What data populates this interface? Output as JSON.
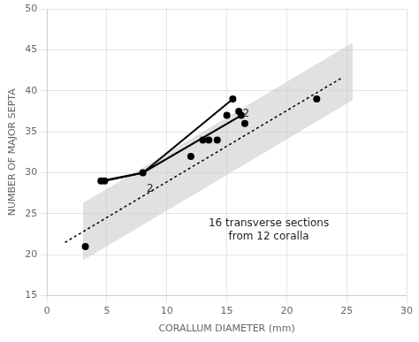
{
  "chart_data": {
    "type": "scatter",
    "xlabel": "CORALLUM DIAMETER (mm)",
    "ylabel": "NUMBER OF MAJOR SEPTA",
    "xlim": [
      0,
      30
    ],
    "ylim": [
      15,
      50
    ],
    "xticks": [
      0,
      5,
      10,
      15,
      20,
      25,
      30
    ],
    "yticks": [
      15,
      20,
      25,
      30,
      35,
      40,
      45,
      50
    ],
    "grid": true,
    "series": [
      {
        "type": "area",
        "color": "#c8c8c8",
        "x": [
          3.0,
          25.5
        ],
        "lower": [
          19.304347826086957,
          38.869565217391305
        ],
        "upper": [
          26.304347826086957,
          45.869565217391305
        ]
      },
      {
        "type": "line",
        "line_style": "dotted",
        "color": "black",
        "x": [
          1.5,
          24.5
        ],
        "values": [
          21.5,
          41.5
        ]
      },
      {
        "type": "line",
        "line_style": "solid",
        "color": "black",
        "x": [
          4.5,
          8.0,
          15.5
        ],
        "values": [
          29.0,
          30.0,
          39.0
        ]
      },
      {
        "type": "line",
        "line_style": "solid",
        "color": "black",
        "x": [
          4.8,
          8.0,
          16.2
        ],
        "values": [
          29.0,
          30.0,
          37.0
        ]
      },
      {
        "type": "scatter",
        "marker": "circle",
        "color": "black",
        "x": [
          3.2,
          4.5,
          4.8,
          8.0,
          12.0,
          13.0,
          13.5,
          14.2,
          15.0,
          15.5,
          16.0,
          16.2,
          16.5,
          22.5
        ],
        "values": [
          21.0,
          29.0,
          29.0,
          30.0,
          32.0,
          34.0,
          34.0,
          34.0,
          37.0,
          39.0,
          37.5,
          37.0,
          36.0,
          39.0
        ]
      }
    ],
    "annotations": [
      {
        "text": "2",
        "x": 8.6,
        "y": 28.0
      },
      {
        "text": "2",
        "x": 16.6,
        "y": 37.2
      },
      {
        "text": "16 transverse sections\nfrom 12 coralla",
        "x": 18.5,
        "y": 23.0
      }
    ]
  }
}
